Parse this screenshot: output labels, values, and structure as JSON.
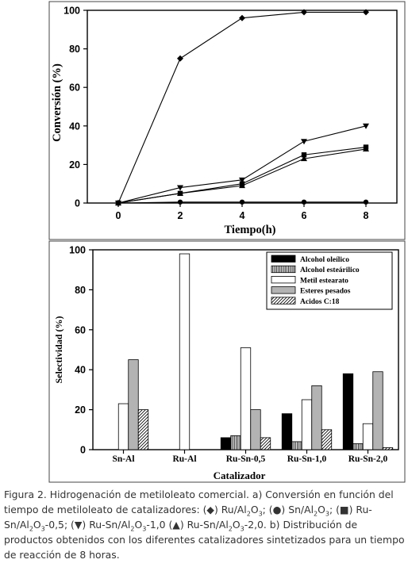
{
  "chart_data": [
    {
      "type": "line",
      "xlabel": "Tiempo(h)",
      "ylabel": "Conversión (%)",
      "xlim": [
        -1,
        9
      ],
      "ylim": [
        0,
        100
      ],
      "xticks": [
        0,
        2,
        4,
        6,
        8
      ],
      "yticks": [
        0,
        20,
        40,
        60,
        80,
        100
      ],
      "xtick_labels": [
        "0",
        "2",
        "4",
        "6",
        "8"
      ],
      "ytick_labels": [
        "0",
        "20",
        "40",
        "60",
        "80",
        "100"
      ],
      "x": [
        0,
        2,
        4,
        6,
        8
      ],
      "series": [
        {
          "marker": "diamond",
          "values": [
            0,
            75,
            96,
            99,
            99
          ]
        },
        {
          "marker": "circle",
          "values": [
            0,
            0.5,
            0.5,
            0.5,
            0.5
          ]
        },
        {
          "marker": "square",
          "values": [
            0,
            5,
            10,
            25,
            29
          ]
        },
        {
          "marker": "triangle-down",
          "values": [
            0,
            8,
            12,
            32,
            40
          ]
        },
        {
          "marker": "triangle-up",
          "values": [
            0,
            5,
            9,
            23,
            28
          ]
        }
      ],
      "grid": false
    },
    {
      "type": "bar",
      "xlabel": "Catalizador",
      "ylabel": "Selectividad (%)",
      "ylim": [
        0,
        100
      ],
      "yticks": [
        0,
        20,
        40,
        60,
        80,
        100
      ],
      "ytick_labels": [
        "0",
        "20",
        "40",
        "60",
        "80",
        "100"
      ],
      "categories": [
        "Sn-Al",
        "Ru-Al",
        "Ru-Sn-0,5",
        "Ru-Sn-1,0",
        "Ru-Sn-2,0"
      ],
      "series": [
        {
          "name": "Alcohol oleílico",
          "pattern": "solid-black",
          "values": [
            0,
            0,
            6,
            18,
            38
          ]
        },
        {
          "name": "Alcohol esteárilico",
          "pattern": "vertical-lines",
          "values": [
            0,
            0,
            7,
            4,
            3
          ]
        },
        {
          "name": "Metil estearato",
          "pattern": "white",
          "values": [
            23,
            98,
            51,
            25,
            13
          ]
        },
        {
          "name": "Esteres pesados",
          "pattern": "gray",
          "values": [
            45,
            0,
            20,
            32,
            39
          ]
        },
        {
          "name": "Acidos C:18",
          "pattern": "diagonal-lines",
          "values": [
            20,
            0,
            6,
            10,
            1
          ]
        }
      ],
      "legend_position": "top-right",
      "grid": false
    }
  ],
  "caption": {
    "parts": [
      {
        "t": "Figura 2. Hidrogenación de metiloleato comercial. a) Conversión en función del tiempo de metiloleato de catalizadores: (◆) Ru/Al"
      },
      {
        "t": "2",
        "sub": true
      },
      {
        "t": "O"
      },
      {
        "t": "3",
        "sub": true
      },
      {
        "t": "; (●) Sn/Al"
      },
      {
        "t": "2",
        "sub": true
      },
      {
        "t": "O"
      },
      {
        "t": "3",
        "sub": true
      },
      {
        "t": "; (■) Ru-Sn/Al"
      },
      {
        "t": "2",
        "sub": true
      },
      {
        "t": "O"
      },
      {
        "t": "3",
        "sub": true
      },
      {
        "t": "-0,5; (▼) Ru-Sn/Al"
      },
      {
        "t": "2",
        "sub": true
      },
      {
        "t": "O"
      },
      {
        "t": "3",
        "sub": true
      },
      {
        "t": "-1,0 (▲) Ru-Sn/Al"
      },
      {
        "t": "2",
        "sub": true
      },
      {
        "t": "O"
      },
      {
        "t": "3",
        "sub": true
      },
      {
        "t": "-2,0. b) Distribución de productos obtenidos con los diferentes catalizadores sintetizados para un tiempo de reacción de 8 horas."
      }
    ]
  },
  "colors": {
    "ink": "#000000",
    "gray": "#b3b3b3",
    "caption": "#333333"
  }
}
